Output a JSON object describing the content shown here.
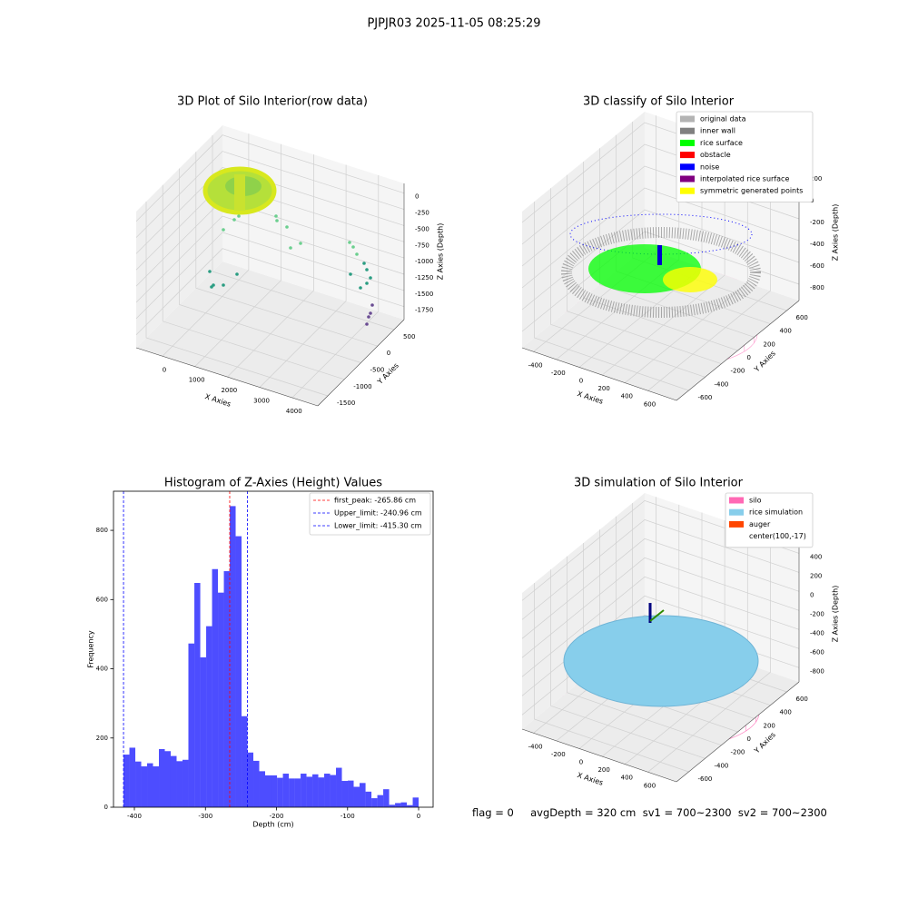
{
  "title": "PJPJR03 2025-11-05 08:25:29",
  "footer": "flag = 0     avgDepth = 320 cm  sv1 = 700~2300  sv2 = 700~2300",
  "chart_data": [
    {
      "type": "scatter3d",
      "title": "3D Plot of Silo Interior(row data)",
      "xlabel": "X Axies",
      "ylabel": "Y Axies",
      "zlabel": "Z Axies (Depth)",
      "xlim": [
        -810,
        4790
      ],
      "ylim": [
        -1800,
        800
      ],
      "zlim": [
        -1950,
        150
      ],
      "xticks": [
        0,
        1000,
        2000,
        3000,
        4000
      ],
      "yticks": [
        -1500,
        -1000,
        -500,
        0,
        500
      ],
      "zticks": [
        0,
        -250,
        -500,
        -750,
        -1000,
        -1250,
        -1500,
        -1750
      ],
      "grid": true
    },
    {
      "type": "scatter3d",
      "title": "3D classify of Silo Interior",
      "xlabel": "X Axies",
      "ylabel": "Y Axies",
      "zlabel": "Z Axies (Depth)",
      "xlim": [
        -500,
        850
      ],
      "ylim": [
        -750,
        750
      ],
      "zlim": [
        -950,
        300
      ],
      "xticks": [
        -400,
        -200,
        0,
        200,
        400,
        600
      ],
      "yticks": [
        -600,
        -400,
        -200,
        0,
        200,
        400,
        600
      ],
      "zticks": [
        -800,
        -600,
        -400,
        -200,
        0,
        200
      ],
      "grid": true,
      "legend_loc": "upper right",
      "legend": [
        {
          "name": "original data",
          "color": "#b3b3b3"
        },
        {
          "name": "inner wall",
          "color": "#808080"
        },
        {
          "name": "rice surface",
          "color": "#00ff00"
        },
        {
          "name": "obstacle",
          "color": "#ff0000"
        },
        {
          "name": "noise",
          "color": "#0000ff"
        },
        {
          "name": "interpolated rice surface",
          "color": "#800080"
        },
        {
          "name": "symmetric generated points",
          "color": "#ffff00"
        }
      ]
    },
    {
      "type": "histogram",
      "title": "Histogram of Z-Axies (Height) Values",
      "xlabel": "Depth (cm)",
      "ylabel": "Frequency",
      "color": "#4d4dff",
      "bins": [
        -415.3,
        -407.0,
        -398.7,
        -390.4,
        -382.1,
        -373.8,
        -365.5,
        -357.2,
        -348.9,
        -340.6,
        -332.3,
        -324.0,
        -315.6,
        -307.3,
        -299.0,
        -290.7,
        -282.4,
        -274.1,
        -265.8,
        -257.5,
        -249.2,
        -240.9,
        -232.6,
        -224.3,
        -216.0,
        -207.7,
        -199.3,
        -191.0,
        -182.7,
        -174.4,
        -166.1,
        -157.8,
        -149.5,
        -141.2,
        -132.9,
        -124.6,
        -116.3,
        -108.0,
        -99.7,
        -91.4,
        -83.1,
        -74.7,
        -66.4,
        -58.1,
        -49.8,
        -41.5,
        -33.2,
        -24.9,
        -16.6,
        -8.3,
        0.0
      ],
      "counts": [
        152,
        172,
        132,
        118,
        127,
        118,
        168,
        162,
        148,
        133,
        137,
        473,
        648,
        433,
        523,
        688,
        620,
        682,
        870,
        783,
        263,
        158,
        134,
        104,
        92,
        92,
        85,
        97,
        83,
        83,
        97,
        88,
        95,
        86,
        97,
        93,
        114,
        76,
        77,
        59,
        70,
        45,
        26,
        35,
        52,
        7,
        12,
        14,
        6,
        28
      ],
      "xlim": [
        -429.4,
        20.4
      ],
      "ylim": [
        0,
        913
      ],
      "xticks": [
        -400,
        -300,
        -200,
        -100,
        0
      ],
      "yticks": [
        0,
        200,
        400,
        600,
        800
      ],
      "legend_loc": "upper right",
      "vlines": [
        {
          "label": "first_peak: -265.86 cm",
          "value": -265.86,
          "color": "#ff0000"
        },
        {
          "label": "Upper_limit: -240.96 cm",
          "value": -240.96,
          "color": "#0000ff"
        },
        {
          "label": "Lower_limit: -415.30 cm",
          "value": -415.3,
          "color": "#0000ff"
        }
      ]
    },
    {
      "type": "surface3d",
      "title": "3D simulation of Silo Interior",
      "xlabel": "X Axies",
      "ylabel": "Y Axies",
      "zlabel": "Z Axies (Depth)",
      "xlim": [
        -500,
        850
      ],
      "ylim": [
        -750,
        750
      ],
      "zlim": [
        -950,
        480
      ],
      "xticks": [
        -400,
        -200,
        0,
        200,
        400,
        600
      ],
      "yticks": [
        -600,
        -400,
        -200,
        0,
        200,
        400,
        600
      ],
      "zticks": [
        -800,
        -600,
        -400,
        -200,
        0,
        200,
        400
      ],
      "grid": true,
      "legend_loc": "upper right",
      "legend": [
        {
          "name": "silo",
          "color": "#ff69b4"
        },
        {
          "name": "rice simulation",
          "color": "#87ceeb"
        },
        {
          "name": "auger",
          "color": "#ff4500"
        },
        {
          "name": "center(100,-17)",
          "color": "#ffffff"
        }
      ]
    }
  ]
}
